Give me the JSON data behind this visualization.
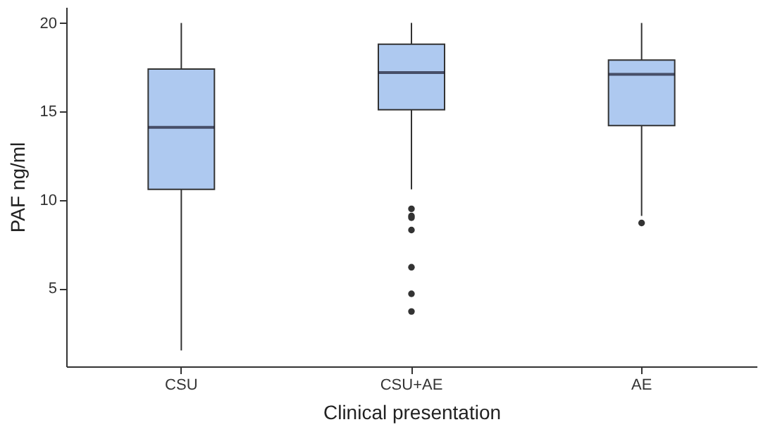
{
  "chart_data": {
    "type": "box",
    "xlabel": "Clinical presentation",
    "ylabel": "PAF ng/ml",
    "categories": [
      "CSU",
      "CSU+AE",
      "AE"
    ],
    "boxes": [
      {
        "low": 1.5,
        "q1": 10.6,
        "median": 14.1,
        "q3": 17.4,
        "high": 20
      },
      {
        "low": 10.6,
        "q1": 15.1,
        "median": 17.2,
        "q3": 18.8,
        "high": 20,
        "outliers": [
          9.5,
          9.1,
          9.0,
          8.3,
          6.2,
          4.7,
          3.7
        ]
      },
      {
        "low": 9.1,
        "q1": 14.2,
        "median": 17.1,
        "q3": 17.9,
        "high": 20,
        "outliers": [
          8.7
        ]
      }
    ],
    "color": "#aec9f0",
    "ylim": [
      0.6,
      20.9
    ],
    "yticks": [
      5,
      10,
      15,
      20
    ],
    "grid": false
  }
}
